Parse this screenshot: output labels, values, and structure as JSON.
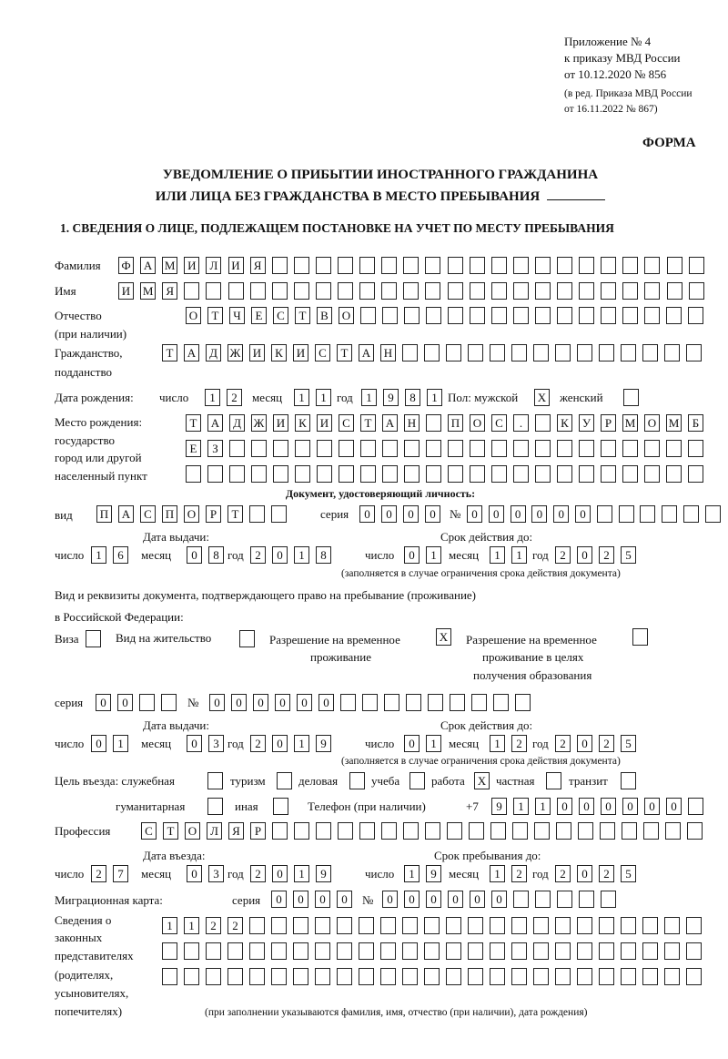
{
  "header": {
    "appendix": "Приложение № 4",
    "order": "к приказу МВД России",
    "order_date": "от 10.12.2020 № 856",
    "edition_1": "(в ред. Приказа МВД России",
    "edition_2": "от 16.11.2022 № 867)",
    "form": "ФОРМА",
    "title_1": "УВЕДОМЛЕНИЕ О ПРИБЫТИИ ИНОСТРАННОГО ГРАЖДАНИНА",
    "title_2": "ИЛИ ЛИЦА БЕЗ ГРАЖДАНСТВА В МЕСТО ПРЕБЫВАНИЯ",
    "section_1": "1. СВЕДЕНИЯ О ЛИЦЕ, ПОДЛЕЖАЩЕМ ПОСТАНОВКЕ НА УЧЕТ ПО МЕСТУ ПРЕБЫВАНИЯ"
  },
  "labels": {
    "surname": "Фамилия",
    "name": "Имя",
    "patronymic": "Отчество",
    "if_any": "(при наличии)",
    "citizenship": "Гражданство,",
    "nationality": "подданство",
    "birth_date": "Дата рождения:",
    "day": "число",
    "month": "месяц",
    "year": "год",
    "sex_male": "Пол: мужской",
    "sex_female": "женский",
    "birth_place": "Место рождения:",
    "state": "государство",
    "city_1": "город или другой",
    "city_2": "населенный пункт",
    "id_doc": "Документ, удостоверяющий личность:",
    "kind": "вид",
    "series": "серия",
    "number": "№",
    "issue_date": "Дата выдачи:",
    "valid_until": "Срок действия до:",
    "validity_note": "(заполняется в случае ограничения срока действия документа)",
    "right_doc_1": "Вид и реквизиты документа, подтверждающего право на пребывание (проживание)",
    "right_doc_2": "в Российской Федерации:",
    "visa": "Виза",
    "residence_permit": "Вид на жительство",
    "temp_res_1": "Разрешение на временное",
    "temp_res_2": "проживание",
    "temp_edu_1": "Разрешение на временное",
    "temp_edu_2": "проживание в целях",
    "temp_edu_3": "получения образования",
    "purpose": "Цель въезда: служебная",
    "tourism": "туризм",
    "business": "деловая",
    "study": "учеба",
    "work": "работа",
    "private": "частная",
    "transit": "транзит",
    "humanitarian": "гуманитарная",
    "other": "иная",
    "phone": "Телефон (при наличии)",
    "phone_prefix": "+7",
    "profession": "Профессия",
    "entry_date": "Дата въезда:",
    "stay_until": "Срок пребывания до:",
    "migration_card": "Миграционная карта:",
    "reps_1": "Сведения о",
    "reps_2": "законных",
    "reps_3": "представителях",
    "reps_4": "(родителях,",
    "reps_5": "усыновителях,",
    "reps_6": "попечителях)",
    "reps_note": "(при заполнении указываются фамилия, имя, отчество (при наличии), дата рождения)"
  },
  "fields": {
    "surname": "ФАМИЛИЯ",
    "name": "ИМЯ",
    "patronymic": "ОТЧЕСТВО",
    "citizenship": "ТАДЖИКИСТАН",
    "birth_day": "12",
    "birth_month": "11",
    "birth_year": "1981",
    "sex_male": "X",
    "sex_female": "",
    "birth_place_1": "ТАДЖИКИСТАН ПОС. КУРМОМБ",
    "birth_place_2": "ЕЗ",
    "birth_place_3": "",
    "id_kind": "ПАСПОРТ",
    "id_series": "0000",
    "id_number": "000000",
    "id_issue_day": "16",
    "id_issue_month": "08",
    "id_issue_year": "2018",
    "id_valid_day": "01",
    "id_valid_month": "11",
    "id_valid_year": "2025",
    "visa": "",
    "residence_permit": "",
    "temp_residence": "X",
    "temp_residence_edu": "",
    "rd_series": "00",
    "rd_number": "000000",
    "rd_issue_day": "01",
    "rd_issue_month": "03",
    "rd_issue_year": "2019",
    "rd_valid_day": "01",
    "rd_valid_month": "12",
    "rd_valid_year": "2025",
    "purpose_service": "",
    "purpose_tourism": "",
    "purpose_business": "",
    "purpose_study": "",
    "purpose_work": "X",
    "purpose_private": "",
    "purpose_transit": "",
    "purpose_humanitarian": "",
    "purpose_other": "",
    "phone": "911000000",
    "profession": "СТОЛЯР",
    "entry_day": "27",
    "entry_month": "03",
    "entry_year": "2019",
    "stay_day": "19",
    "stay_month": "12",
    "stay_year": "2025",
    "mc_series": "0000",
    "mc_number": "000000",
    "reps_1": "1122",
    "reps_2": "",
    "reps_3": ""
  }
}
